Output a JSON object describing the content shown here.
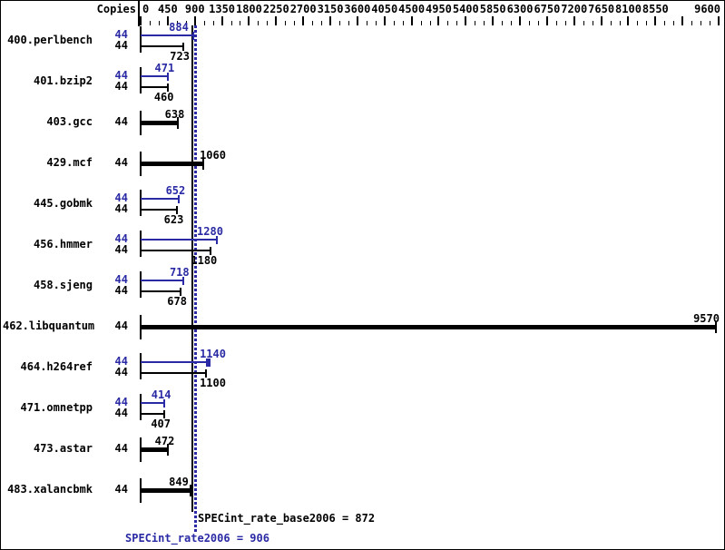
{
  "header": {
    "copies_label": "Copies"
  },
  "colors": {
    "peak_blue": "#2a2aa5",
    "base_black": "#000000",
    "background": "#ffffff"
  },
  "axis": {
    "min": 0,
    "max": 9600,
    "minor_step": 150,
    "major_step": 450,
    "labels": [
      0,
      450,
      900,
      1350,
      1800,
      2250,
      2700,
      3150,
      3600,
      4050,
      4500,
      4950,
      5400,
      5850,
      6300,
      6750,
      7200,
      7650,
      8100,
      8550,
      9600
    ]
  },
  "chart_data": {
    "type": "bar",
    "orientation": "horizontal",
    "xlabel": "",
    "ylabel": "Copies",
    "xlim": [
      0,
      9600
    ],
    "legend": "two-row groups: top bar = peak (blue), bottom bar = base (black); single thick bar = base result only",
    "benchmarks": [
      {
        "name": "400.perlbench",
        "copies": 44,
        "peak": 884,
        "base": 723
      },
      {
        "name": "401.bzip2",
        "copies": 44,
        "peak": 471,
        "base": 460
      },
      {
        "name": "403.gcc",
        "copies": 44,
        "peak": null,
        "base": 638
      },
      {
        "name": "429.mcf",
        "copies": 44,
        "peak": null,
        "base": 1060
      },
      {
        "name": "445.gobmk",
        "copies": 44,
        "peak": 652,
        "base": 623
      },
      {
        "name": "456.hmmer",
        "copies": 44,
        "peak": 1280,
        "base": 1180
      },
      {
        "name": "458.sjeng",
        "copies": 44,
        "peak": 718,
        "base": 678
      },
      {
        "name": "462.libquantum",
        "copies": 44,
        "peak": null,
        "base": 9570
      },
      {
        "name": "464.h264ref",
        "copies": 44,
        "peak": 1140,
        "base": 1100,
        "peak_marker": true
      },
      {
        "name": "471.omnetpp",
        "copies": 44,
        "peak": 414,
        "base": 407
      },
      {
        "name": "473.astar",
        "copies": 44,
        "peak": null,
        "base": 472
      },
      {
        "name": "483.xalancbmk",
        "copies": 44,
        "peak": null,
        "base": 849
      }
    ],
    "summary": {
      "base_text": "SPECint_rate_base2006 = 872",
      "base_mean": 872,
      "peak_text": "SPECint_rate2006 = 906",
      "peak_mean": 906
    }
  }
}
